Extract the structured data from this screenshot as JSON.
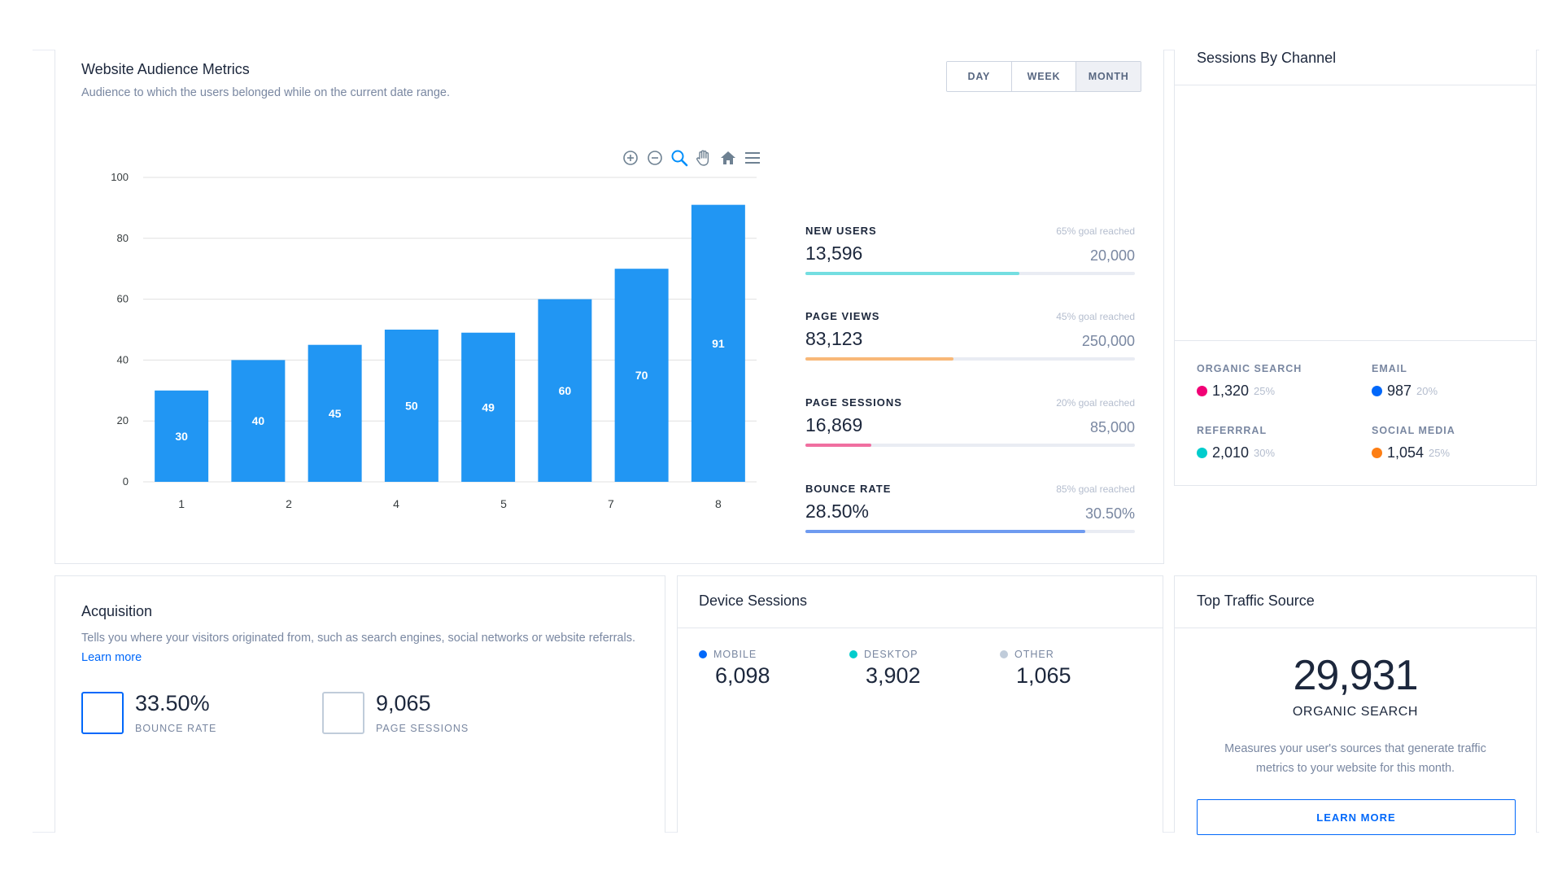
{
  "audience": {
    "title": "Website Audience Metrics",
    "subtitle": "Audience to which the users belonged while on the current date range.",
    "ranges": [
      "DAY",
      "WEEK",
      "MONTH"
    ],
    "toolbar_icons": [
      "zoom-in-icon",
      "zoom-out-icon",
      "selection-zoom-icon",
      "pan-icon",
      "reset-home-icon",
      "menu-icon"
    ]
  },
  "chart_data": {
    "type": "bar",
    "categories": [
      "1",
      "2",
      "3",
      "4",
      "5",
      "6",
      "7",
      "8"
    ],
    "x_tick_labels": [
      "1",
      "2",
      "4",
      "5",
      "7",
      "8"
    ],
    "values": [
      30,
      40,
      45,
      50,
      49,
      60,
      70,
      91
    ],
    "ylim": [
      0,
      100
    ],
    "yticks": [
      0,
      20,
      40,
      60,
      80,
      100
    ],
    "bar_color": "#2196f3",
    "grid": true,
    "title": "",
    "xlabel": "",
    "ylabel": ""
  },
  "metrics": [
    {
      "label": "NEW USERS",
      "goal": "65% goal reached",
      "value": "13,596",
      "target": "20,000",
      "progress": 0.65,
      "color": "#74dee1"
    },
    {
      "label": "PAGE VIEWS",
      "goal": "45% goal reached",
      "value": "83,123",
      "target": "250,000",
      "progress": 0.45,
      "color": "#f8b878"
    },
    {
      "label": "PAGE SESSIONS",
      "goal": "20% goal reached",
      "value": "16,869",
      "target": "85,000",
      "progress": 0.2,
      "color": "#f06fa0"
    },
    {
      "label": "BOUNCE RATE",
      "goal": "85% goal reached",
      "value": "28.50%",
      "target": "30.50%",
      "progress": 0.85,
      "color": "#6f9bf0"
    }
  ],
  "channels": {
    "title": "Sessions By Channel",
    "items": [
      {
        "label": "ORGANIC SEARCH",
        "value": "1,320",
        "pct": "25%",
        "color": "#f10075"
      },
      {
        "label": "EMAIL",
        "value": "987",
        "pct": "20%",
        "color": "#0168fa"
      },
      {
        "label": "REFERRRAL",
        "value": "2,010",
        "pct": "30%",
        "color": "#00cccc"
      },
      {
        "label": "SOCIAL MEDIA",
        "value": "1,054",
        "pct": "25%",
        "color": "#fd7e14"
      }
    ]
  },
  "acquisition": {
    "title": "Acquisition",
    "description": "Tells you where your visitors originated from, such as search engines, social networks or website referrals.",
    "link": "Learn more",
    "stats": [
      {
        "value": "33.50%",
        "label": "BOUNCE RATE",
        "border": "#0168fa"
      },
      {
        "value": "9,065",
        "label": "PAGE SESSIONS",
        "border": "#c0ccda"
      }
    ]
  },
  "devices": {
    "title": "Device Sessions",
    "items": [
      {
        "label": "MOBILE",
        "value": "6,098",
        "color": "#0168fa"
      },
      {
        "label": "DESKTOP",
        "value": "3,902",
        "color": "#00cccc"
      },
      {
        "label": "OTHER",
        "value": "1,065",
        "color": "#c0ccda"
      }
    ]
  },
  "traffic": {
    "title": "Top Traffic Source",
    "value": "29,931",
    "label": "ORGANIC SEARCH",
    "description": "Measures your user's sources that generate traffic metrics to your website for this month.",
    "button": "LEARN MORE"
  }
}
